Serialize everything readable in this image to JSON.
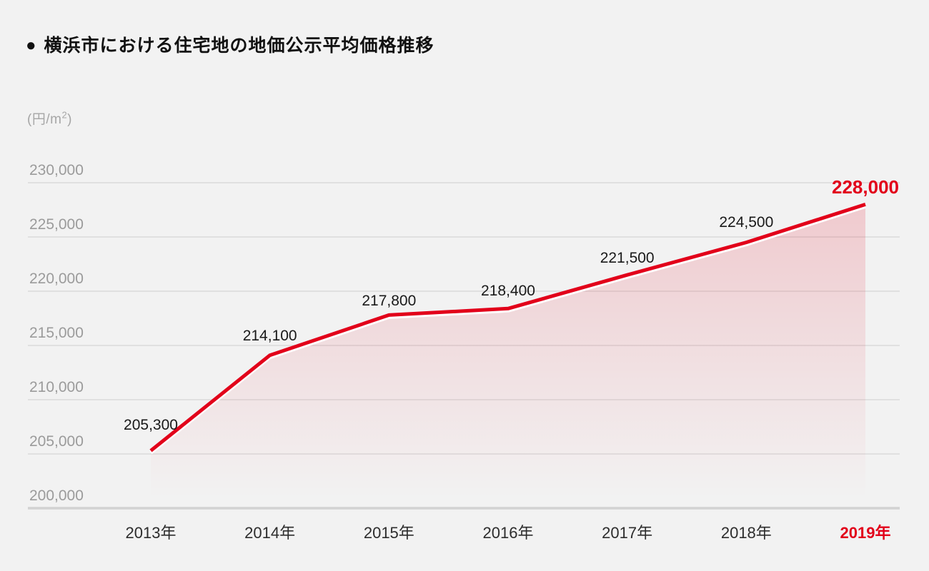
{
  "header": {
    "bullet": "●",
    "title": "横浜市における住宅地の地価公示平均価格推移"
  },
  "chart_data": {
    "type": "line",
    "title": "横浜市における住宅地の地価公示平均価格推移",
    "unit_label": {
      "prefix": "(円/m",
      "sup": "2",
      "suffix": ")"
    },
    "categories": [
      "2013年",
      "2014年",
      "2015年",
      "2016年",
      "2017年",
      "2018年",
      "2019年"
    ],
    "values": [
      205300,
      214100,
      217800,
      218400,
      221500,
      224500,
      228000
    ],
    "point_labels": [
      "205,300",
      "214,100",
      "217,800",
      "218,400",
      "221,500",
      "224,500",
      "228,000"
    ],
    "y_ticks": [
      "230,000",
      "225,000",
      "220,000",
      "215,000",
      "210,000",
      "205,000",
      "200,000"
    ],
    "ylim": [
      200000,
      230000
    ],
    "grid": true,
    "legend": "none",
    "highlight_index": 6,
    "colors": {
      "accent": "#e2001a",
      "background": "#f2f2f2",
      "grid": "#dadada",
      "baseline": "#d2d2d2",
      "tick_text": "#9b9b9b",
      "axis_text": "#2d2d2d",
      "label_text": "#191919",
      "line_underlay": "#ffffff",
      "fill_top": "rgba(226,0,26,0.17)",
      "fill_bottom": "rgba(226,0,26,0)"
    }
  }
}
